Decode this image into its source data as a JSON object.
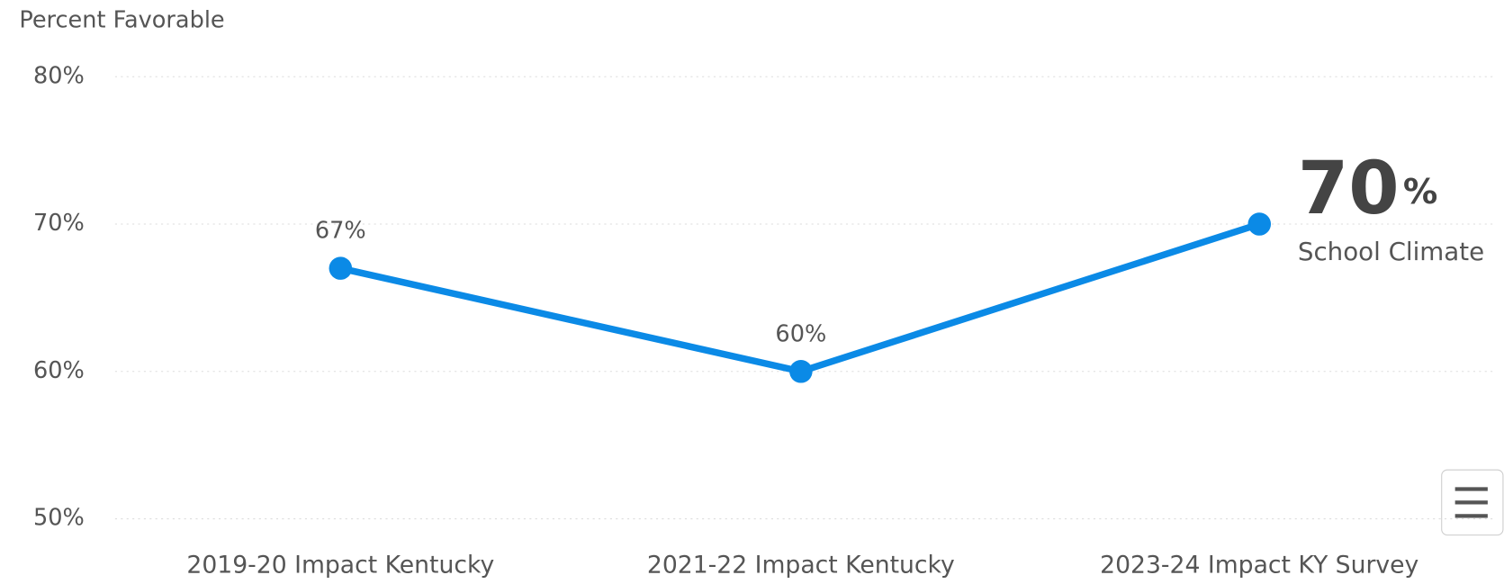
{
  "chart_data": {
    "type": "line",
    "y_axis_label": "Percent Favorable",
    "categories": [
      "2019-20 Impact Kentucky",
      "2021-22 Impact Kentucky",
      "2023-24 Impact KY Survey"
    ],
    "series": [
      {
        "name": "School Climate",
        "color": "#0b8ae6",
        "values": [
          67,
          60,
          70
        ],
        "value_labels": [
          "67%",
          "60%",
          null
        ]
      }
    ],
    "callout": {
      "label": "70",
      "unit": "%"
    },
    "ylim": [
      50,
      80
    ],
    "yticks": [
      {
        "value": 50,
        "label": "50%"
      },
      {
        "value": 60,
        "label": "60%"
      },
      {
        "value": 70,
        "label": "70%"
      },
      {
        "value": 80,
        "label": "80%"
      }
    ],
    "grid": true
  }
}
